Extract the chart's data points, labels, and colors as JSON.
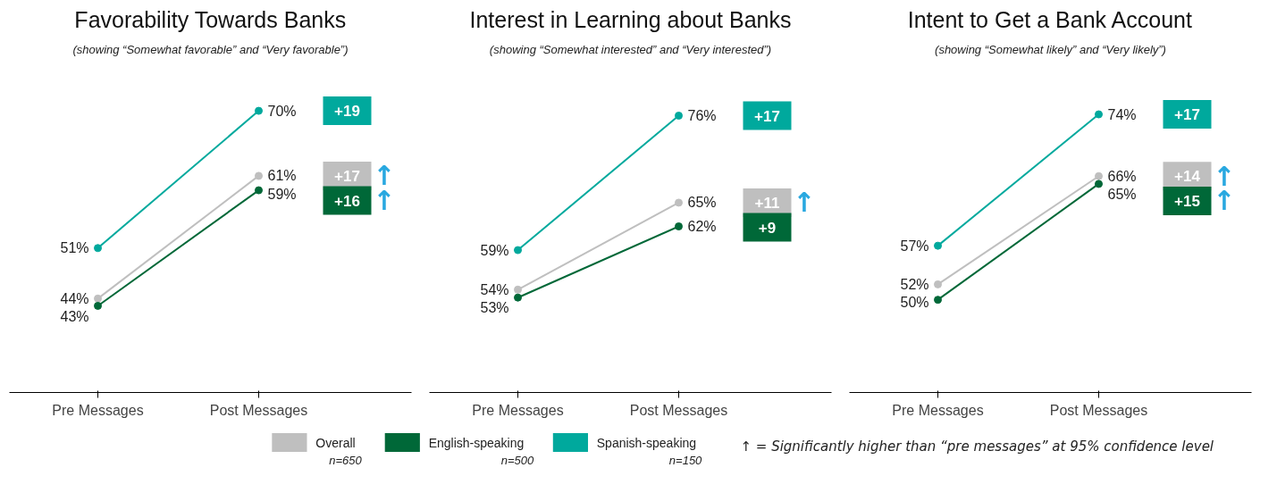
{
  "chart_data": [
    {
      "type": "line",
      "title": "Favorability Towards Banks",
      "subtitle": "(showing “Somewhat favorable” and “Very favorable”)",
      "categories": [
        "Pre Messages",
        "Post Messages"
      ],
      "marker": "circle",
      "tick_labels": "x",
      "legend": "bottom",
      "series": [
        {
          "name": "Overall\nn=650",
          "color": "#bfbfbf",
          "values": [
            44,
            61
          ],
          "value_labels": [
            "44%",
            "61%"
          ]
        },
        {
          "name": "English-speaking\nn=500",
          "color": "#006838",
          "values": [
            43,
            59
          ],
          "value_labels": [
            "43%",
            "59%"
          ]
        },
        {
          "name": "Spanish-speaking\nn=150",
          "color": "#00a99d",
          "values": [
            51,
            70
          ],
          "value_labels": [
            "51%",
            "70%"
          ]
        }
      ],
      "annotations": [
        "+19",
        "+17",
        "↑",
        "+16",
        "↑",
        "↑ = Significantly higher than “pre messages” at 95% confidence level"
      ]
    },
    {
      "type": "line",
      "title": "Interest in Learning about Banks",
      "subtitle": "(showing “Somewhat interested” and “Very interested”)",
      "categories": [
        "Pre Messages",
        "Post Messages"
      ],
      "marker": "circle",
      "tick_labels": "x",
      "series": [
        {
          "color": "#bfbfbf",
          "values": [
            54,
            65
          ],
          "value_labels": [
            "54%",
            "65%"
          ]
        },
        {
          "color": "#006838",
          "values": [
            53,
            62
          ],
          "value_labels": [
            "53%",
            "62%"
          ]
        },
        {
          "color": "#00a99d",
          "values": [
            59,
            76
          ],
          "value_labels": [
            "59%",
            "76%"
          ]
        }
      ],
      "annotations": [
        "+17",
        "+11",
        "↑",
        "+9"
      ]
    },
    {
      "type": "line",
      "title": "Intent to Get a Bank Account",
      "subtitle": "(showing “Somewhat likely” and “Very likely”)",
      "categories": [
        "Pre Messages",
        "Post Messages"
      ],
      "marker": "circle",
      "tick_labels": "x",
      "series": [
        {
          "color": "#bfbfbf",
          "values": [
            52,
            66
          ],
          "value_labels": [
            "52%",
            "66%"
          ]
        },
        {
          "color": "#006838",
          "values": [
            50,
            65
          ],
          "value_labels": [
            "50%",
            "65%"
          ]
        },
        {
          "color": "#00a99d",
          "values": [
            57,
            74
          ],
          "value_labels": [
            "57%",
            "74%"
          ]
        }
      ],
      "annotations": [
        "+17",
        "+14",
        "↑",
        "+15",
        "↑"
      ]
    }
  ]
}
